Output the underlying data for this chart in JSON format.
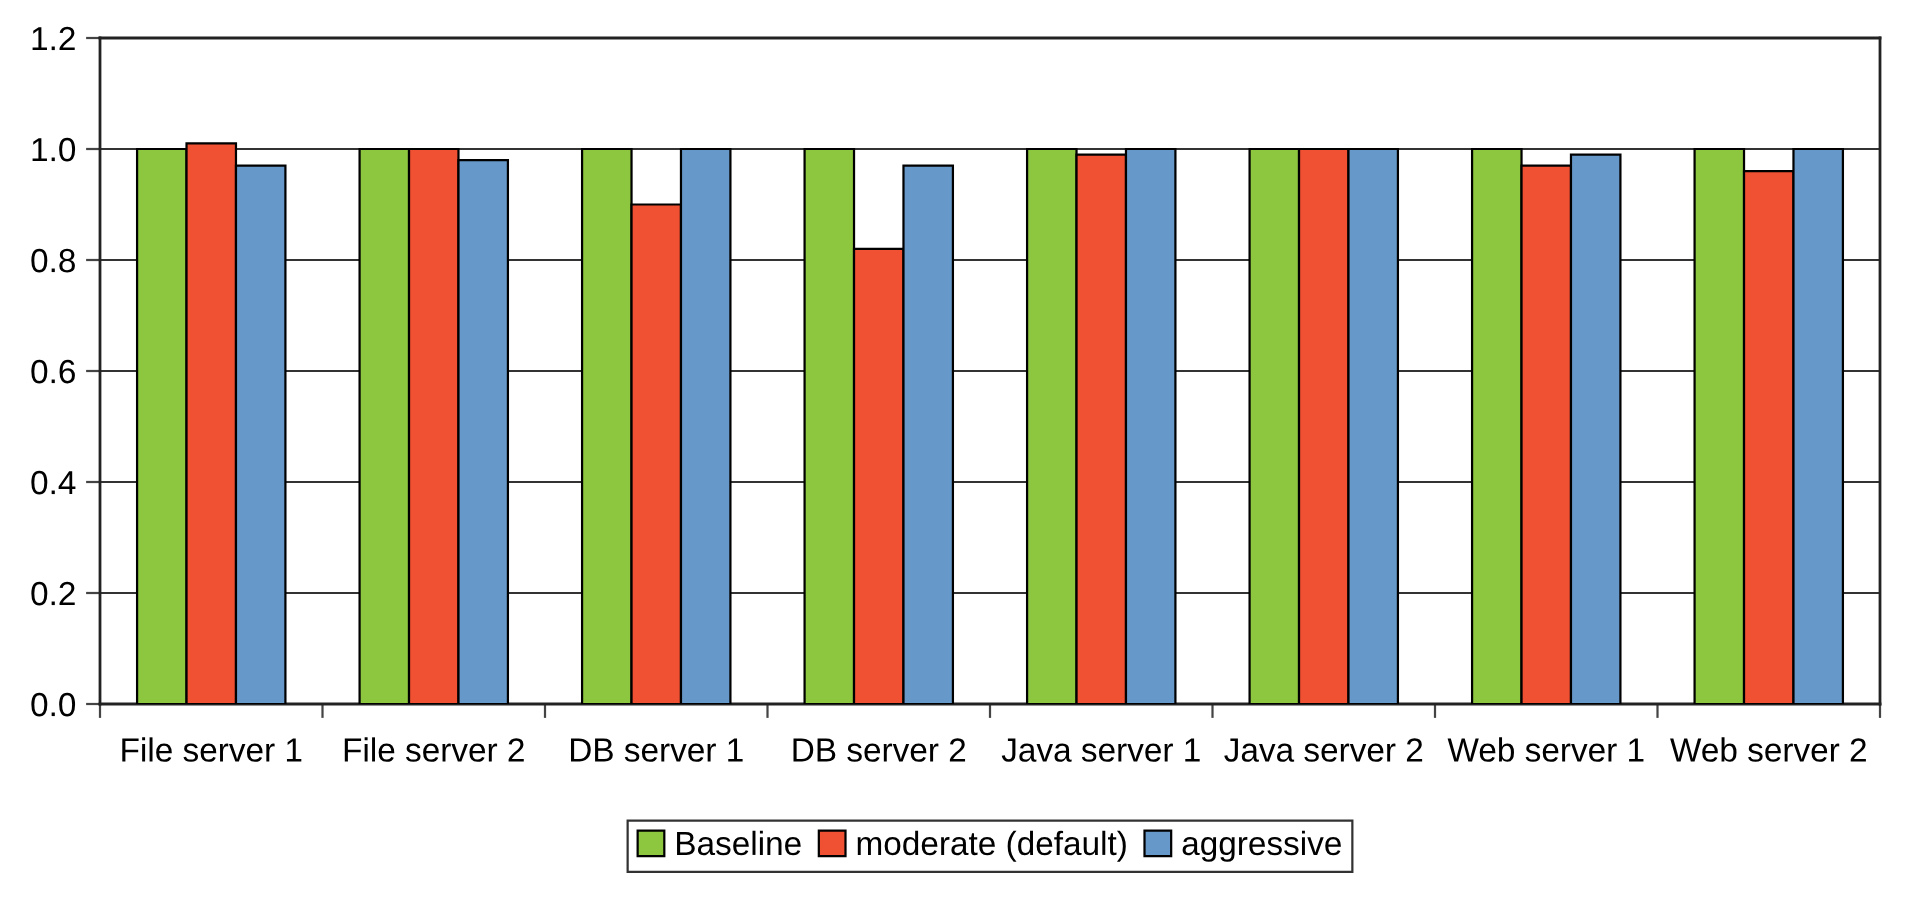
{
  "chart_data": {
    "type": "bar",
    "categories": [
      "File server 1",
      "File server 2",
      "DB server 1",
      "DB server 2",
      "Java server 1",
      "Java server 2",
      "Web server 1",
      "Web server 2"
    ],
    "series": [
      {
        "name": "Baseline",
        "color": "#8dc63f",
        "values": [
          1.0,
          1.0,
          1.0,
          1.0,
          1.0,
          1.0,
          1.0,
          1.0
        ]
      },
      {
        "name": "moderate (default)",
        "color": "#f05133",
        "values": [
          1.01,
          1.0,
          0.9,
          0.82,
          0.99,
          1.0,
          0.97,
          0.96
        ]
      },
      {
        "name": "aggressive",
        "color": "#6699c9",
        "values": [
          0.97,
          0.98,
          1.0,
          0.97,
          1.0,
          1.0,
          0.99,
          1.0
        ]
      }
    ],
    "ylim": [
      0,
      1.2
    ],
    "yticks": [
      {
        "value": 0,
        "label": "0.0"
      },
      {
        "value": 0.2,
        "label": "0.2"
      },
      {
        "value": 0.4,
        "label": "0.4"
      },
      {
        "value": 0.6,
        "label": "0.6"
      },
      {
        "value": 0.8,
        "label": "0.8"
      },
      {
        "value": 1.0,
        "label": "1.0"
      },
      {
        "value": 1.2,
        "label": "1.2"
      }
    ],
    "grid": "y",
    "legend": "bottom"
  }
}
